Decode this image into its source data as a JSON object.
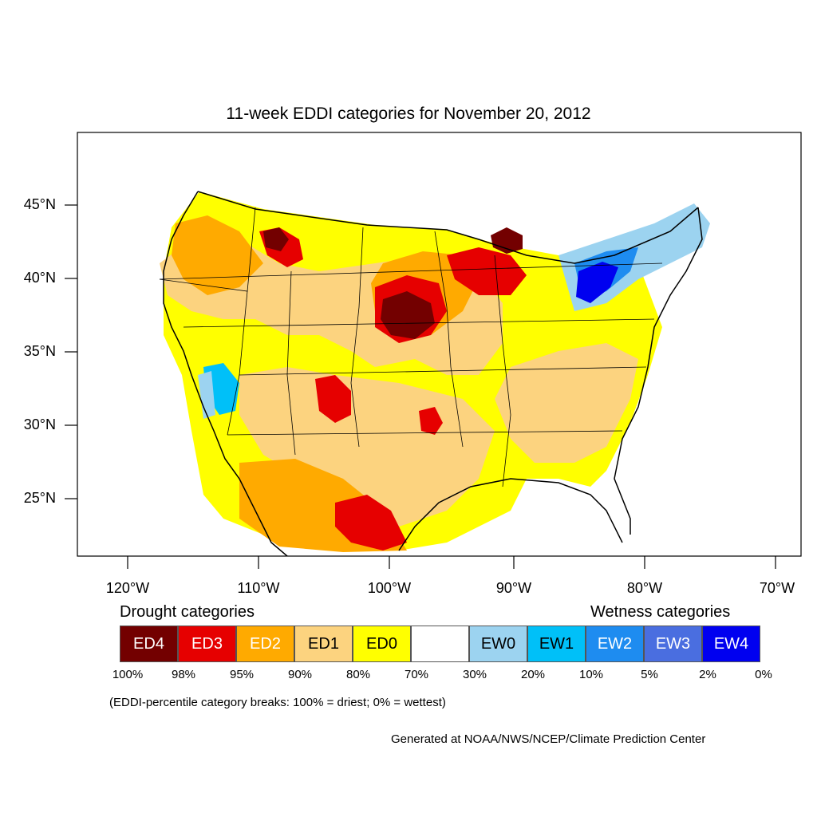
{
  "title": "11-week EDDI categories for November 20, 2012",
  "latitude_labels": [
    "45°N",
    "40°N",
    "35°N",
    "30°N",
    "25°N"
  ],
  "longitude_labels": [
    "120°W",
    "110°W",
    "100°W",
    "90°W",
    "80°W",
    "70°W"
  ],
  "legend": {
    "drought_heading": "Drought categories",
    "wetness_heading": "Wetness categories",
    "categories": [
      {
        "label": "ED4",
        "color": "#730000",
        "text_color": "#ffffff"
      },
      {
        "label": "ED3",
        "color": "#e60000",
        "text_color": "#ffffff"
      },
      {
        "label": "ED2",
        "color": "#ffaa00",
        "text_color": "#ffffff"
      },
      {
        "label": "ED1",
        "color": "#fcd37f",
        "text_color": "#000000"
      },
      {
        "label": "ED0",
        "color": "#ffff00",
        "text_color": "#000000"
      },
      {
        "label": "",
        "color": "#ffffff",
        "text_color": "#000000"
      },
      {
        "label": "EW0",
        "color": "#9cd3f0",
        "text_color": "#000000"
      },
      {
        "label": "EW1",
        "color": "#00c0f8",
        "text_color": "#000000"
      },
      {
        "label": "EW2",
        "color": "#1e8cf0",
        "text_color": "#ffffff"
      },
      {
        "label": "EW3",
        "color": "#4a6ee0",
        "text_color": "#ffffff"
      },
      {
        "label": "EW4",
        "color": "#0000f0",
        "text_color": "#ffffff"
      }
    ],
    "percentiles": [
      "100%",
      "98%",
      "95%",
      "90%",
      "80%",
      "70%",
      "30%",
      "20%",
      "10%",
      "5%",
      "2%",
      "0%"
    ]
  },
  "breaks_note": "(EDDI-percentile category breaks: 100% = driest; 0% = wettest)",
  "credit": "Generated at NOAA/NWS/NCEP/Climate Prediction Center"
}
